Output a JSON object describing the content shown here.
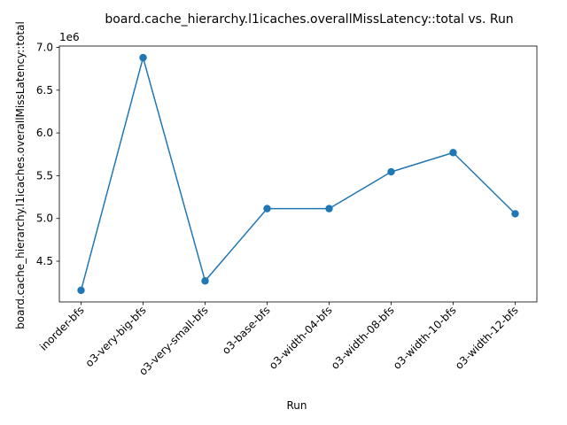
{
  "chart_data": {
    "type": "line",
    "title": "board.cache_hierarchy.l1icaches.overallMissLatency::total vs. Run",
    "xlabel": "Run",
    "ylabel": "board.cache_hierarchy.l1icaches.overallMissLatency::total",
    "y_offset_label": "1e6",
    "categories": [
      "inorder-bfs",
      "o3-very-big-bfs",
      "o3-very-small-bfs",
      "o3-base-bfs",
      "o3-width-04-bfs",
      "o3-width-08-bfs",
      "o3-width-10-bfs",
      "o3-width-12-bfs"
    ],
    "values": [
      4160000,
      6880000,
      4270000,
      5115000,
      5115000,
      5545000,
      5770000,
      5055000
    ],
    "y_ticks": [
      4.5,
      5.0,
      5.5,
      6.0,
      6.5,
      7.0
    ],
    "y_tick_labels": [
      "4.5",
      "5.0",
      "5.5",
      "6.0",
      "6.5",
      "7.0"
    ],
    "ylim": [
      4024000,
      7016000
    ],
    "grid": false,
    "color": "#1f77b4"
  }
}
